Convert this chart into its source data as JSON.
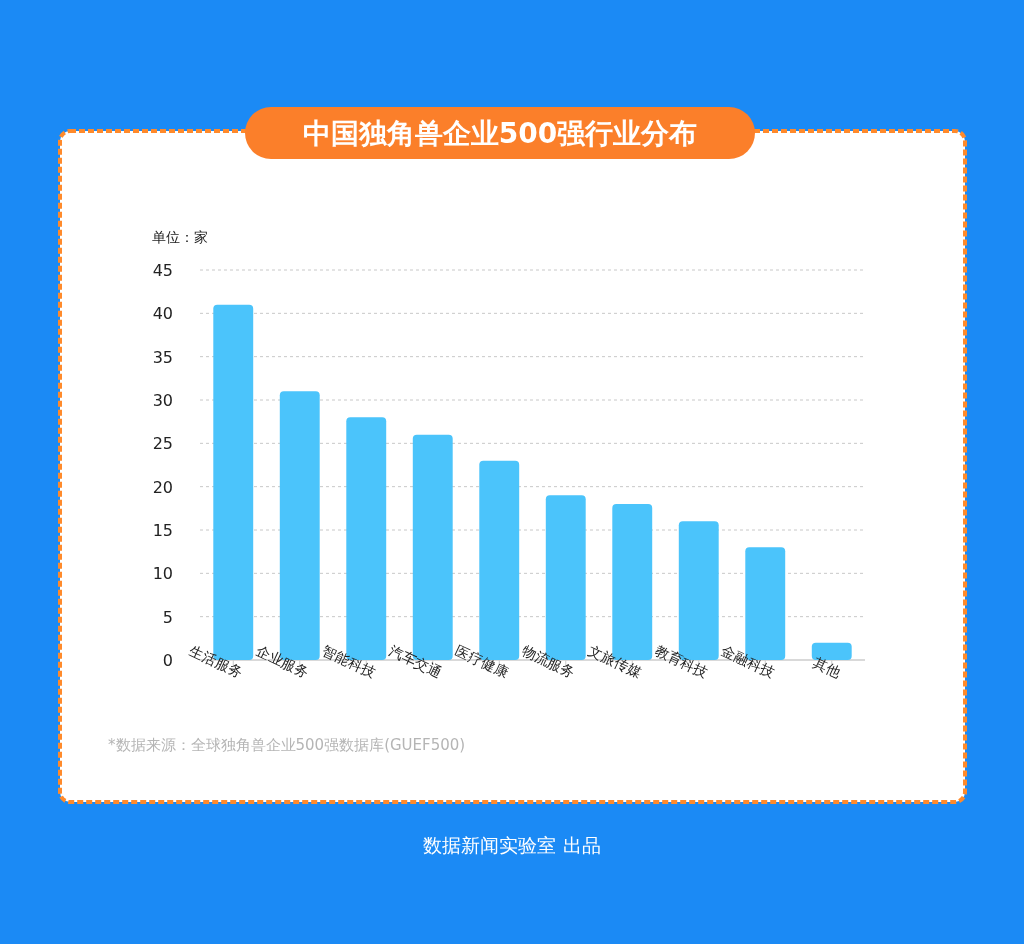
{
  "chart_data": {
    "type": "bar",
    "title": "中国独角兽企业500强行业分布",
    "ylabel": "单位：家",
    "categories": [
      "生活服务",
      "企业服务",
      "智能科技",
      "汽车交通",
      "医疗健康",
      "物流服务",
      "文旅传媒",
      "教育科技",
      "金融科技",
      "其他"
    ],
    "values": [
      41,
      31,
      28,
      26,
      23,
      19,
      18,
      16,
      13,
      2
    ],
    "color": "#4bc4fb",
    "ylim": [
      0,
      45
    ],
    "yticks": [
      0,
      5,
      10,
      15,
      20,
      25,
      30,
      35,
      40,
      45
    ],
    "grid": "y",
    "annotations": [
      "*数据来源：全球独角兽企业500强数据库(GUEF500)",
      "数据新闻实验室 出品"
    ]
  }
}
